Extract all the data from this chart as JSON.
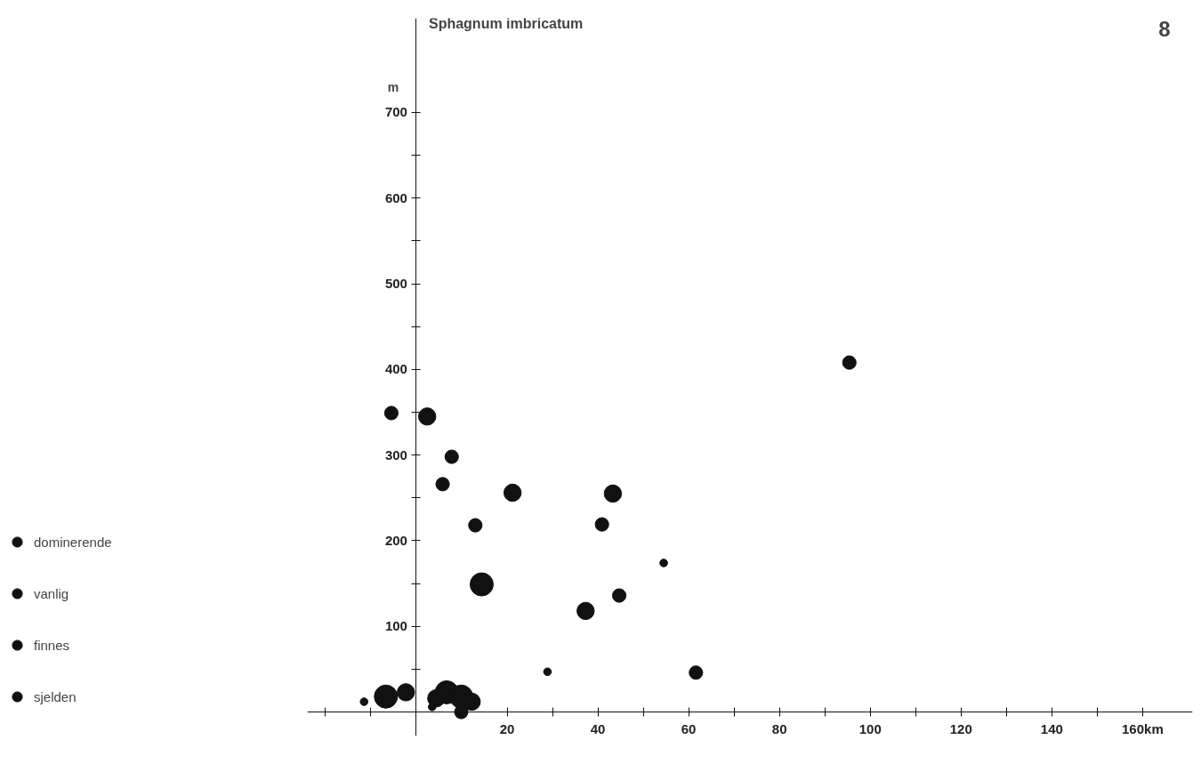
{
  "chart_data": {
    "type": "bubble",
    "title": "Sphagnum imbricatum",
    "ylabel": "m",
    "annotations": [
      "8"
    ],
    "legend": "left",
    "grid": false,
    "marker": "circle",
    "xlim": [
      -24,
      171
    ],
    "ylim": [
      -28,
      810
    ],
    "xticks": [
      {
        "value": -20,
        "label": null
      },
      {
        "value": -10,
        "label": null
      },
      {
        "value": 10,
        "label": null
      },
      20,
      {
        "value": 30,
        "label": null
      },
      40,
      {
        "value": 50,
        "label": null
      },
      60,
      {
        "value": 70,
        "label": null
      },
      80,
      {
        "value": 90,
        "label": null
      },
      100,
      {
        "value": 110,
        "label": null
      },
      120,
      {
        "value": 130,
        "label": null
      },
      140,
      {
        "value": 150,
        "label": null
      },
      {
        "value": 160,
        "label": "160km"
      }
    ],
    "yticks": [
      {
        "value": 50,
        "label": null
      },
      100,
      {
        "value": 150,
        "label": null
      },
      200,
      {
        "value": 250,
        "label": null
      },
      300,
      {
        "value": 350,
        "label": null
      },
      400,
      {
        "value": 450,
        "label": null
      },
      500,
      {
        "value": 550,
        "label": null
      },
      600,
      {
        "value": 650,
        "label": null
      },
      700
    ],
    "series": [
      {
        "name": "dominerende",
        "color": "#111111",
        "x": [
          14.4,
          -6.7,
          6.7,
          9.9
        ],
        "values": [
          149,
          18,
          23,
          18
        ],
        "sizes": [
          1,
          1,
          1,
          1
        ]
      },
      {
        "name": "vanlig",
        "color": "#111111",
        "x": [
          2.4,
          21.2,
          43.3,
          37.3,
          -2.3,
          12.2,
          4.4
        ],
        "values": [
          345,
          256,
          255,
          118,
          23,
          12,
          16
        ],
        "sizes": [
          0.56,
          0.56,
          0.56,
          0.56,
          0.56,
          0.56,
          0.56
        ]
      },
      {
        "name": "finnes",
        "color": "#111111",
        "x": [
          -5.5,
          7.8,
          5.8,
          13,
          95.4,
          40.9,
          44.7,
          61.6,
          9.9
        ],
        "values": [
          349,
          298,
          266,
          218,
          408,
          219,
          136,
          46,
          0
        ],
        "sizes": [
          0.34,
          0.34,
          0.34,
          0.34,
          0.34,
          0.34,
          0.34,
          0.34,
          0.34
        ]
      },
      {
        "name": "sjelden",
        "color": "#111111",
        "x": [
          28.9,
          -11.5,
          54.5,
          3.5
        ],
        "values": [
          47,
          12,
          174,
          6
        ],
        "sizes": [
          0.11,
          0.11,
          0.11,
          0.11
        ]
      }
    ]
  }
}
